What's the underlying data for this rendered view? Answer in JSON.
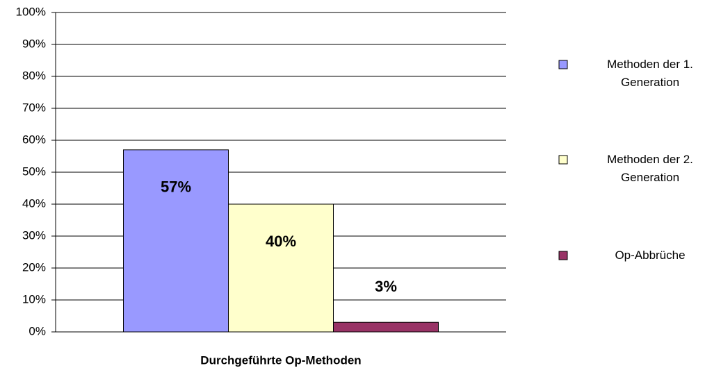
{
  "chart_data": {
    "type": "bar",
    "categories": [
      "Durchgeführte Op-Methoden"
    ],
    "series": [
      {
        "name": "Methoden der 1. Generation",
        "color": "#9999ff",
        "values": [
          57
        ],
        "value_labels": [
          "57%"
        ]
      },
      {
        "name": "Methoden der 2. Generation",
        "color": "#ffffcc",
        "values": [
          40
        ],
        "value_labels": [
          "40%"
        ]
      },
      {
        "name": "Op-Abbrüche",
        "color": "#993366",
        "values": [
          3
        ],
        "value_labels": [
          "3%"
        ]
      }
    ],
    "ylim": [
      0,
      100
    ],
    "yticks": [
      {
        "value": 0,
        "label": "0%"
      },
      {
        "value": 10,
        "label": "10%"
      },
      {
        "value": 20,
        "label": "20%"
      },
      {
        "value": 30,
        "label": "30%"
      },
      {
        "value": 40,
        "label": "40%"
      },
      {
        "value": 50,
        "label": "50%"
      },
      {
        "value": 60,
        "label": "60%"
      },
      {
        "value": 70,
        "label": "70%"
      },
      {
        "value": 80,
        "label": "80%"
      },
      {
        "value": 90,
        "label": "90%"
      },
      {
        "value": 100,
        "label": "100%"
      }
    ],
    "grid": true,
    "legend": "right"
  }
}
